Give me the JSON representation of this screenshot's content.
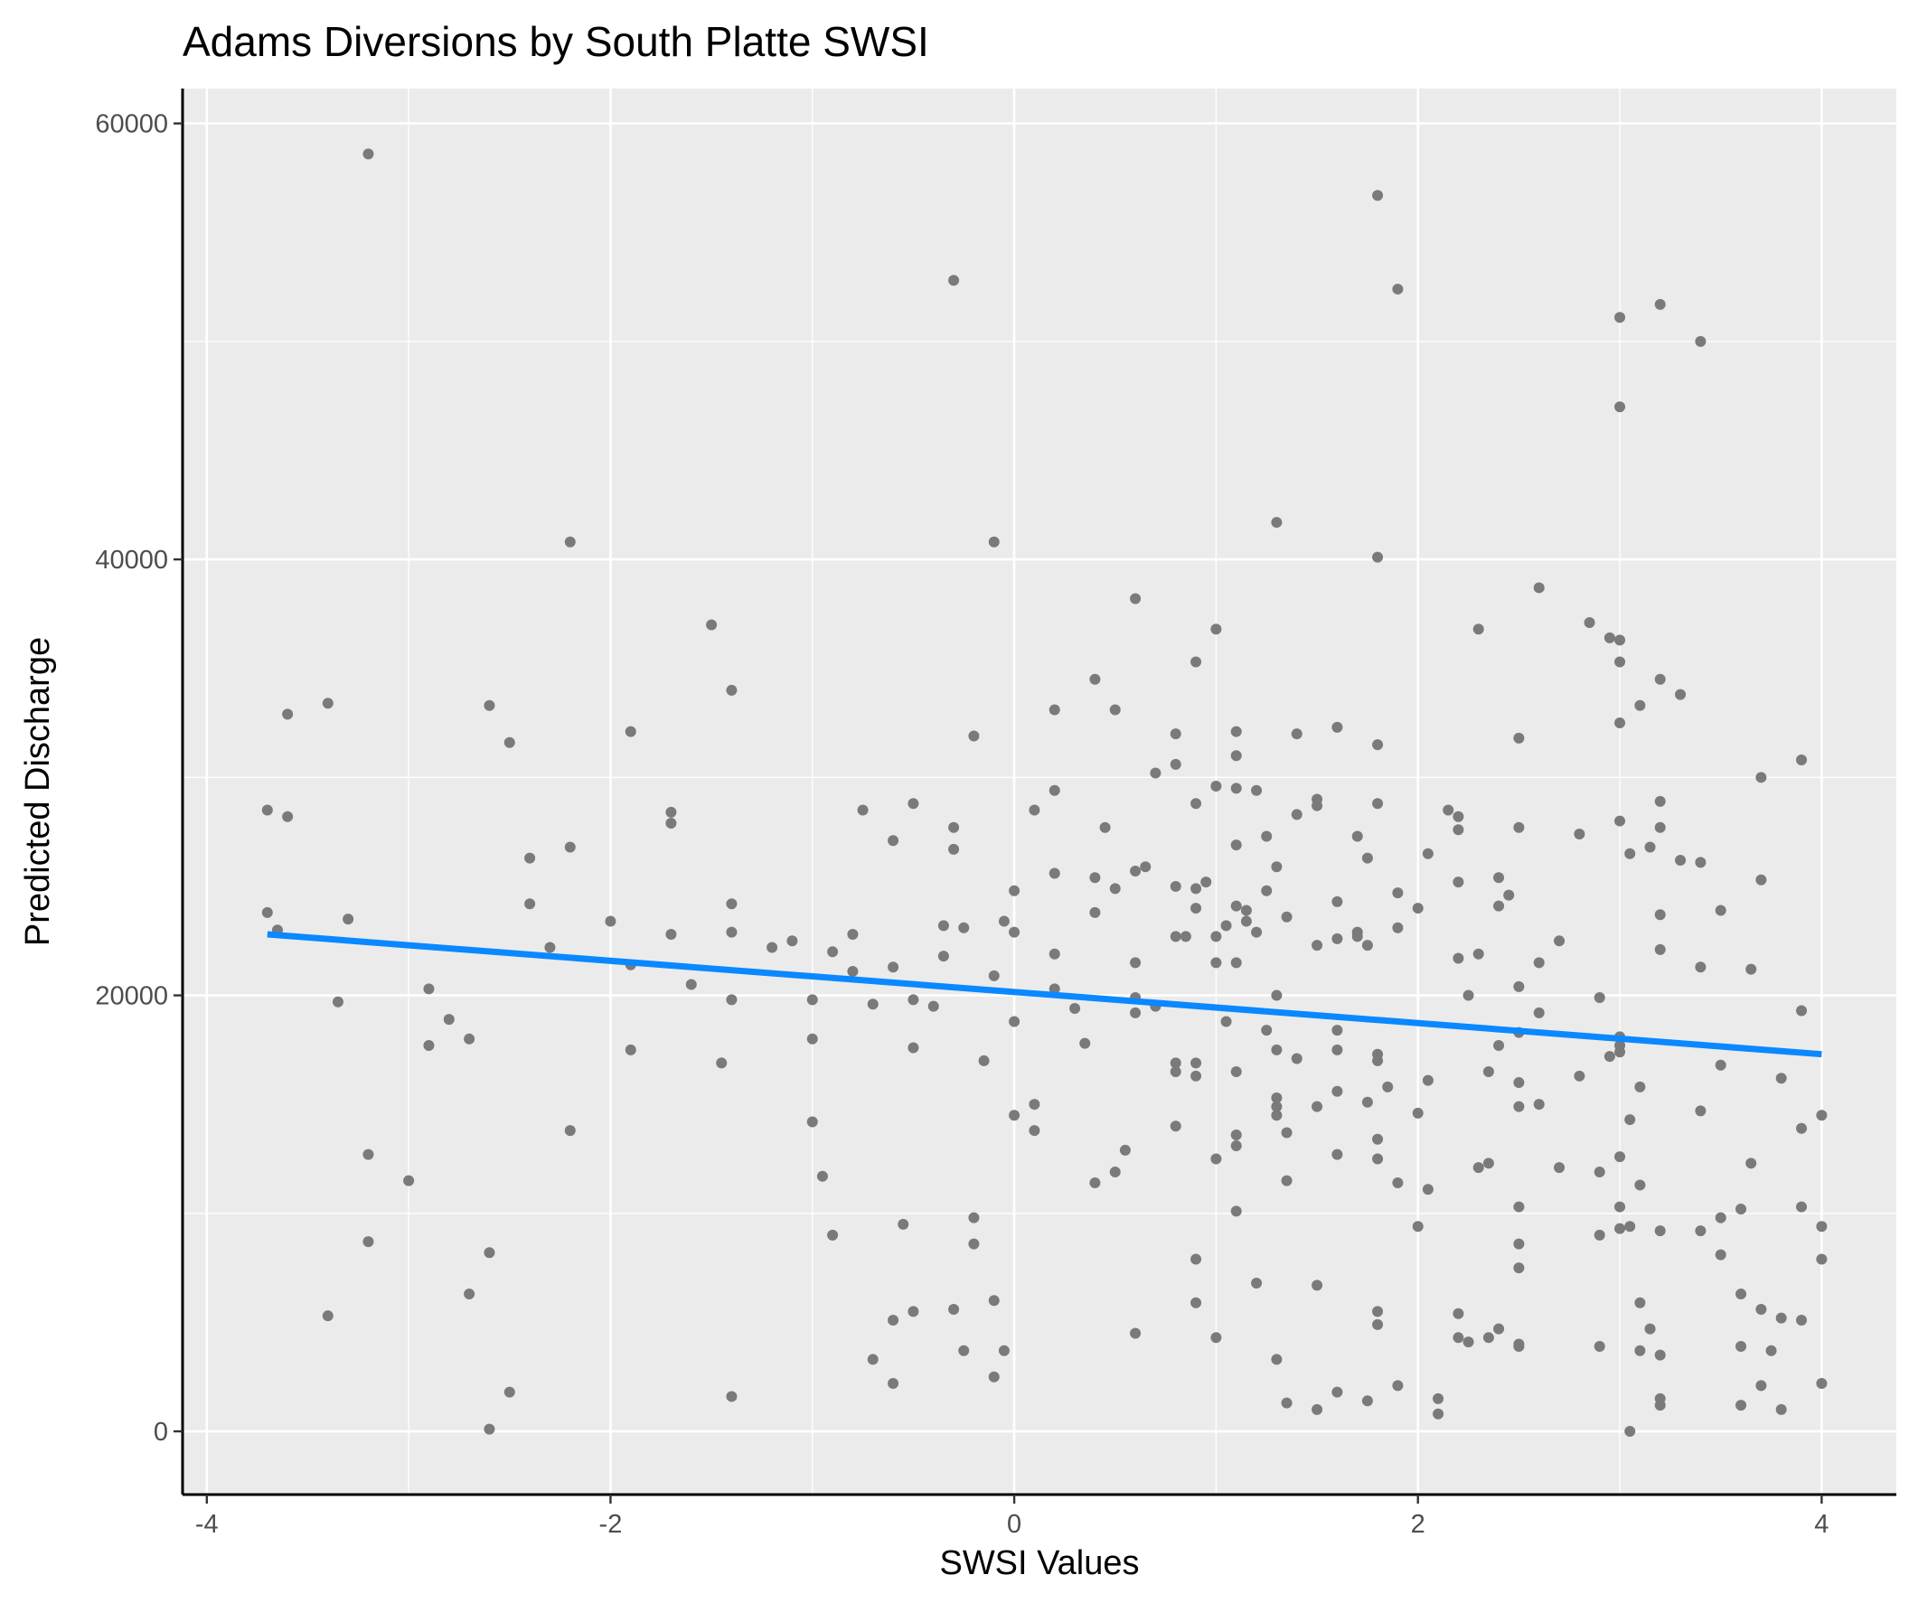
{
  "chart_data": {
    "type": "scatter",
    "title": "Adams Diversions by South Platte SWSI",
    "xlabel": "SWSI Values",
    "ylabel": "Predicted Discharge",
    "xlim": [
      -4.12,
      4.37
    ],
    "ylim": [
      -2900,
      61600
    ],
    "x_ticks": [
      -4,
      -2,
      0,
      2,
      4
    ],
    "y_ticks": [
      0,
      20000,
      40000,
      60000
    ],
    "x_tick_labels": [
      "-4",
      "-2",
      "0",
      "2",
      "4"
    ],
    "y_tick_labels": [
      "0",
      "20000",
      "40000",
      "60000"
    ],
    "grid": true,
    "legend": "none",
    "colors": {
      "panel": "#ebebeb",
      "grid": "#ffffff",
      "points": "#7a7a7a",
      "line": "#0a88ff",
      "axis": "#000000"
    },
    "trend_line": {
      "x": [
        -3.7,
        4.0
      ],
      "y": [
        22800,
        17300
      ]
    },
    "points": [
      [
        -3.2,
        58600
      ],
      [
        1.8,
        56700
      ],
      [
        -0.3,
        52800
      ],
      [
        1.9,
        52400
      ],
      [
        3.2,
        51700
      ],
      [
        3.0,
        51100
      ],
      [
        3.4,
        50000
      ],
      [
        3.0,
        47000
      ],
      [
        1.3,
        41700
      ],
      [
        -2.2,
        40800
      ],
      [
        -0.1,
        40800
      ],
      [
        1.8,
        40100
      ],
      [
        2.6,
        38700
      ],
      [
        0.6,
        38200
      ],
      [
        2.85,
        37100
      ],
      [
        -1.5,
        37000
      ],
      [
        1.0,
        36800
      ],
      [
        2.3,
        36800
      ],
      [
        2.95,
        36400
      ],
      [
        3.0,
        36300
      ],
      [
        0.9,
        35300
      ],
      [
        3.0,
        35300
      ],
      [
        0.4,
        34500
      ],
      [
        3.2,
        34500
      ],
      [
        -1.4,
        34000
      ],
      [
        3.3,
        33800
      ],
      [
        -3.4,
        33400
      ],
      [
        -2.6,
        33300
      ],
      [
        3.1,
        33300
      ],
      [
        0.2,
        33100
      ],
      [
        0.5,
        33100
      ],
      [
        -3.6,
        32900
      ],
      [
        1.6,
        32300
      ],
      [
        3.0,
        32500
      ],
      [
        -1.9,
        32100
      ],
      [
        1.1,
        32100
      ],
      [
        1.4,
        32000
      ],
      [
        -0.2,
        31900
      ],
      [
        0.8,
        32000
      ],
      [
        2.5,
        31800
      ],
      [
        -2.5,
        31600
      ],
      [
        1.8,
        31500
      ],
      [
        1.1,
        31000
      ],
      [
        3.9,
        30800
      ],
      [
        0.8,
        30600
      ],
      [
        0.7,
        30200
      ],
      [
        3.7,
        30000
      ],
      [
        1.0,
        29600
      ],
      [
        1.1,
        29500
      ],
      [
        1.2,
        29400
      ],
      [
        0.2,
        29400
      ],
      [
        1.5,
        29000
      ],
      [
        3.2,
        28900
      ],
      [
        0.9,
        28800
      ],
      [
        1.8,
        28800
      ],
      [
        1.5,
        28700
      ],
      [
        -0.5,
        28800
      ],
      [
        -3.7,
        28500
      ],
      [
        -0.75,
        28500
      ],
      [
        0.1,
        28500
      ],
      [
        2.15,
        28500
      ],
      [
        -1.7,
        28400
      ],
      [
        1.4,
        28300
      ],
      [
        2.2,
        28200
      ],
      [
        -3.6,
        28200
      ],
      [
        3.0,
        28000
      ],
      [
        -1.7,
        27900
      ],
      [
        -0.3,
        27700
      ],
      [
        0.45,
        27700
      ],
      [
        2.2,
        27600
      ],
      [
        2.5,
        27700
      ],
      [
        3.2,
        27700
      ],
      [
        2.8,
        27400
      ],
      [
        1.25,
        27300
      ],
      [
        1.7,
        27300
      ],
      [
        -0.6,
        27100
      ],
      [
        1.1,
        26900
      ],
      [
        -2.2,
        26800
      ],
      [
        3.15,
        26800
      ],
      [
        -0.3,
        26700
      ],
      [
        3.05,
        26500
      ],
      [
        2.05,
        26500
      ],
      [
        1.75,
        26300
      ],
      [
        -2.4,
        26300
      ],
      [
        3.3,
        26200
      ],
      [
        3.4,
        26100
      ],
      [
        1.3,
        25900
      ],
      [
        0.65,
        25900
      ],
      [
        0.6,
        25700
      ],
      [
        0.2,
        25600
      ],
      [
        2.4,
        25400
      ],
      [
        0.4,
        25400
      ],
      [
        3.7,
        25300
      ],
      [
        0.95,
        25200
      ],
      [
        2.2,
        25200
      ],
      [
        0.8,
        25000
      ],
      [
        0.9,
        24900
      ],
      [
        0.5,
        24900
      ],
      [
        1.25,
        24800
      ],
      [
        0.0,
        24800
      ],
      [
        1.9,
        24700
      ],
      [
        2.45,
        24600
      ],
      [
        1.6,
        24300
      ],
      [
        -1.4,
        24200
      ],
      [
        -2.4,
        24200
      ],
      [
        2.4,
        24100
      ],
      [
        1.1,
        24100
      ],
      [
        0.9,
        24000
      ],
      [
        2.0,
        24000
      ],
      [
        1.15,
        23900
      ],
      [
        0.4,
        23800
      ],
      [
        3.5,
        23900
      ],
      [
        3.2,
        23700
      ],
      [
        -3.7,
        23800
      ],
      [
        1.35,
        23600
      ],
      [
        -3.3,
        23500
      ],
      [
        -2.0,
        23400
      ],
      [
        -0.05,
        23400
      ],
      [
        1.05,
        23200
      ],
      [
        1.15,
        23400
      ],
      [
        -0.35,
        23200
      ],
      [
        -0.25,
        23100
      ],
      [
        1.9,
        23100
      ],
      [
        -3.65,
        23000
      ],
      [
        1.7,
        22900
      ],
      [
        1.0,
        22700
      ],
      [
        1.2,
        22900
      ],
      [
        -1.4,
        22900
      ],
      [
        -0.8,
        22800
      ],
      [
        -1.7,
        22800
      ],
      [
        0.8,
        22700
      ],
      [
        0.0,
        22900
      ],
      [
        1.6,
        22600
      ],
      [
        0.85,
        22700
      ],
      [
        2.7,
        22500
      ],
      [
        -1.1,
        22500
      ],
      [
        1.5,
        22300
      ],
      [
        1.7,
        22700
      ],
      [
        1.75,
        22300
      ],
      [
        3.2,
        22100
      ],
      [
        -1.2,
        22200
      ],
      [
        -2.3,
        22200
      ],
      [
        -0.9,
        22000
      ],
      [
        2.3,
        21900
      ],
      [
        0.2,
        21900
      ],
      [
        -0.35,
        21800
      ],
      [
        2.2,
        21700
      ],
      [
        0.6,
        21500
      ],
      [
        1.0,
        21500
      ],
      [
        1.1,
        21500
      ],
      [
        2.6,
        21500
      ],
      [
        3.4,
        21300
      ],
      [
        3.65,
        21200
      ],
      [
        -0.6,
        21300
      ],
      [
        -0.8,
        21100
      ],
      [
        -1.9,
        21400
      ],
      [
        -0.1,
        20900
      ],
      [
        -1.6,
        20500
      ],
      [
        2.5,
        20400
      ],
      [
        0.2,
        20300
      ],
      [
        -2.9,
        20300
      ],
      [
        2.25,
        20000
      ],
      [
        1.3,
        20000
      ],
      [
        0.6,
        19900
      ],
      [
        2.9,
        19900
      ],
      [
        -1.0,
        19800
      ],
      [
        -3.35,
        19700
      ],
      [
        -0.5,
        19800
      ],
      [
        -1.4,
        19800
      ],
      [
        -0.4,
        19500
      ],
      [
        0.7,
        19500
      ],
      [
        -0.7,
        19600
      ],
      [
        0.3,
        19400
      ],
      [
        3.9,
        19300
      ],
      [
        0.6,
        19200
      ],
      [
        2.6,
        19200
      ],
      [
        -2.8,
        18900
      ],
      [
        1.05,
        18800
      ],
      [
        0.0,
        18800
      ],
      [
        1.6,
        18400
      ],
      [
        1.25,
        18400
      ],
      [
        2.5,
        18300
      ],
      [
        3.0,
        18100
      ],
      [
        -2.7,
        18000
      ],
      [
        -1.0,
        18000
      ],
      [
        2.4,
        17700
      ],
      [
        0.35,
        17800
      ],
      [
        3.0,
        17700
      ],
      [
        -2.9,
        17700
      ],
      [
        -0.5,
        17600
      ],
      [
        1.3,
        17500
      ],
      [
        -1.9,
        17500
      ],
      [
        1.6,
        17500
      ],
      [
        3.0,
        17400
      ],
      [
        1.8,
        17300
      ],
      [
        2.95,
        17200
      ],
      [
        1.4,
        17100
      ],
      [
        1.8,
        17000
      ],
      [
        -0.15,
        17000
      ],
      [
        0.9,
        16900
      ],
      [
        -1.45,
        16900
      ],
      [
        0.8,
        16900
      ],
      [
        3.5,
        16800
      ],
      [
        0.8,
        16500
      ],
      [
        2.35,
        16500
      ],
      [
        1.1,
        16500
      ],
      [
        0.9,
        16300
      ],
      [
        2.8,
        16300
      ],
      [
        3.8,
        16200
      ],
      [
        2.05,
        16100
      ],
      [
        2.5,
        16000
      ],
      [
        1.85,
        15800
      ],
      [
        3.1,
        15800
      ],
      [
        1.6,
        15600
      ],
      [
        1.3,
        15300
      ],
      [
        1.75,
        15100
      ],
      [
        1.5,
        14900
      ],
      [
        2.6,
        15000
      ],
      [
        2.5,
        14900
      ],
      [
        0.1,
        15000
      ],
      [
        1.3,
        14900
      ],
      [
        3.4,
        14700
      ],
      [
        2.0,
        14600
      ],
      [
        0.0,
        14500
      ],
      [
        1.3,
        14500
      ],
      [
        4.0,
        14500
      ],
      [
        3.05,
        14300
      ],
      [
        -1.0,
        14200
      ],
      [
        0.8,
        14000
      ],
      [
        3.9,
        13900
      ],
      [
        0.1,
        13800
      ],
      [
        -2.2,
        13800
      ],
      [
        1.35,
        13700
      ],
      [
        1.1,
        13600
      ],
      [
        1.8,
        13400
      ],
      [
        1.1,
        13100
      ],
      [
        0.55,
        12900
      ],
      [
        -3.2,
        12700
      ],
      [
        1.6,
        12700
      ],
      [
        3.0,
        12600
      ],
      [
        1.0,
        12500
      ],
      [
        1.8,
        12500
      ],
      [
        3.65,
        12300
      ],
      [
        2.35,
        12300
      ],
      [
        2.3,
        12100
      ],
      [
        2.7,
        12100
      ],
      [
        2.9,
        11900
      ],
      [
        0.5,
        11900
      ],
      [
        -0.95,
        11700
      ],
      [
        1.35,
        11500
      ],
      [
        -3.0,
        11500
      ],
      [
        1.9,
        11400
      ],
      [
        0.4,
        11400
      ],
      [
        3.1,
        11300
      ],
      [
        2.05,
        11100
      ],
      [
        2.5,
        10300
      ],
      [
        3.9,
        10300
      ],
      [
        3.0,
        10300
      ],
      [
        3.6,
        10200
      ],
      [
        1.1,
        10100
      ],
      [
        -0.2,
        9800
      ],
      [
        3.5,
        9800
      ],
      [
        -0.55,
        9500
      ],
      [
        3.05,
        9400
      ],
      [
        2.0,
        9400
      ],
      [
        4.0,
        9400
      ],
      [
        3.0,
        9300
      ],
      [
        3.2,
        9200
      ],
      [
        3.4,
        9200
      ],
      [
        -0.9,
        9000
      ],
      [
        2.9,
        9000
      ],
      [
        -3.2,
        8700
      ],
      [
        -0.2,
        8600
      ],
      [
        2.5,
        8600
      ],
      [
        -2.6,
        8200
      ],
      [
        3.5,
        8100
      ],
      [
        4.0,
        7900
      ],
      [
        0.9,
        7900
      ],
      [
        2.5,
        7500
      ],
      [
        1.2,
        6800
      ],
      [
        1.5,
        6700
      ],
      [
        -2.7,
        6300
      ],
      [
        3.6,
        6300
      ],
      [
        0.9,
        5900
      ],
      [
        3.1,
        5900
      ],
      [
        -0.1,
        6000
      ],
      [
        3.7,
        5600
      ],
      [
        -0.3,
        5600
      ],
      [
        -0.5,
        5500
      ],
      [
        1.8,
        5500
      ],
      [
        2.2,
        5400
      ],
      [
        3.8,
        5200
      ],
      [
        3.9,
        5100
      ],
      [
        -3.4,
        5300
      ],
      [
        -0.6,
        5100
      ],
      [
        1.8,
        4900
      ],
      [
        3.15,
        4700
      ],
      [
        2.4,
        4700
      ],
      [
        0.6,
        4500
      ],
      [
        2.35,
        4300
      ],
      [
        2.2,
        4300
      ],
      [
        2.25,
        4100
      ],
      [
        1.0,
        4300
      ],
      [
        2.5,
        4000
      ],
      [
        2.9,
        3900
      ],
      [
        3.6,
        3900
      ],
      [
        3.1,
        3700
      ],
      [
        2.5,
        3900
      ],
      [
        -0.25,
        3700
      ],
      [
        -0.05,
        3700
      ],
      [
        3.75,
        3700
      ],
      [
        3.2,
        3500
      ],
      [
        1.3,
        3300
      ],
      [
        -0.7,
        3300
      ],
      [
        -0.1,
        2500
      ],
      [
        -0.6,
        2200
      ],
      [
        3.7,
        2100
      ],
      [
        1.9,
        2100
      ],
      [
        4.0,
        2200
      ],
      [
        -2.5,
        1800
      ],
      [
        -1.4,
        1600
      ],
      [
        1.6,
        1800
      ],
      [
        2.1,
        1500
      ],
      [
        3.2,
        1500
      ],
      [
        1.75,
        1400
      ],
      [
        1.35,
        1300
      ],
      [
        3.2,
        1200
      ],
      [
        3.6,
        1200
      ],
      [
        1.5,
        1000
      ],
      [
        3.8,
        1000
      ],
      [
        2.1,
        800
      ],
      [
        -2.6,
        100
      ],
      [
        3.05,
        0
      ]
    ]
  }
}
